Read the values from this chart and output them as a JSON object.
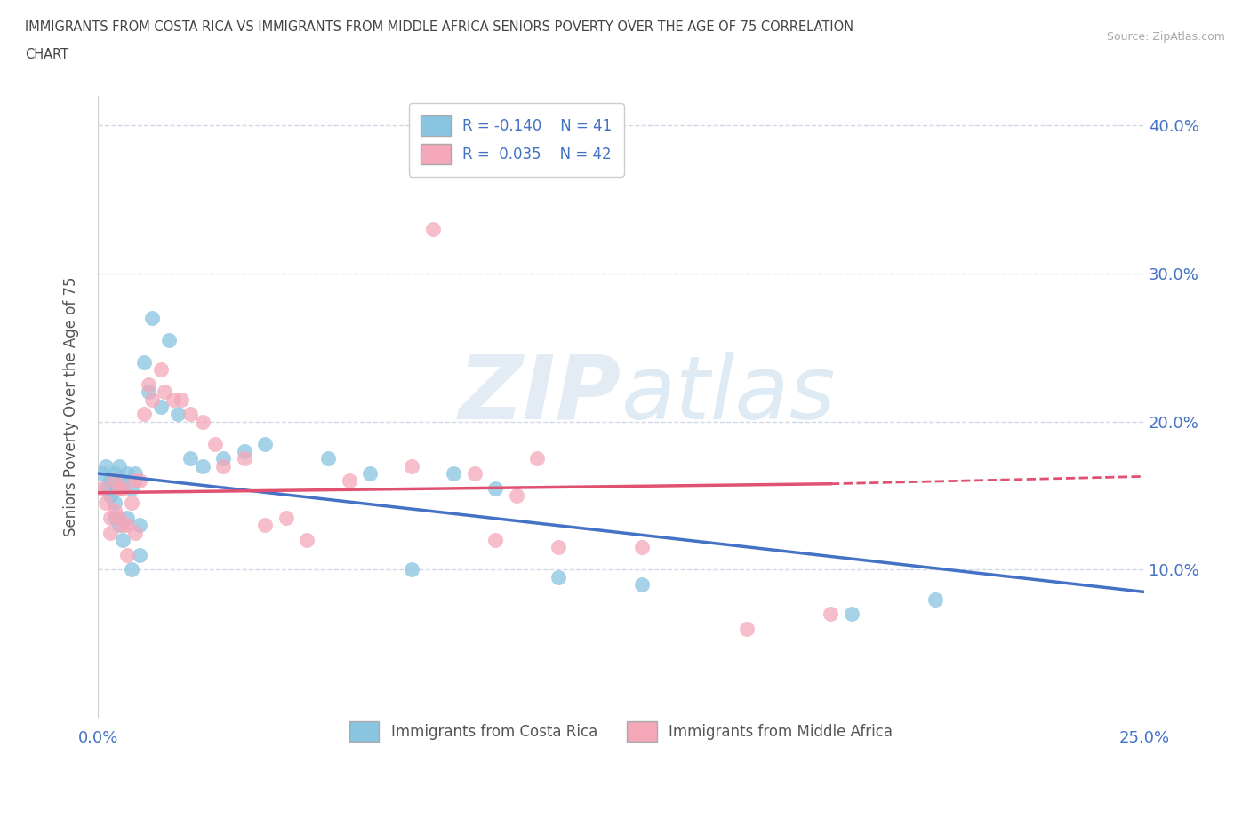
{
  "title_line1": "IMMIGRANTS FROM COSTA RICA VS IMMIGRANTS FROM MIDDLE AFRICA SENIORS POVERTY OVER THE AGE OF 75 CORRELATION",
  "title_line2": "CHART",
  "source": "Source: ZipAtlas.com",
  "ylabel": "Seniors Poverty Over the Age of 75",
  "xlim": [
    0.0,
    0.25
  ],
  "ylim": [
    0.0,
    0.42
  ],
  "ytick_positions": [
    0.1,
    0.2,
    0.3,
    0.4
  ],
  "xtick_positions": [
    0.0,
    0.25
  ],
  "xtick_labels": [
    "0.0%",
    "25.0%"
  ],
  "ytick_labels": [
    "10.0%",
    "20.0%",
    "30.0%",
    "40.0%"
  ],
  "watermark_zip": "ZIP",
  "watermark_atlas": "atlas",
  "legend_r_costa_rica": "R = -0.140",
  "legend_n_costa_rica": "N = 41",
  "legend_r_middle_africa": "R =  0.035",
  "legend_n_middle_africa": "N = 42",
  "color_costa_rica": "#89c4e1",
  "color_middle_africa": "#f4a7b9",
  "color_trendline_costa_rica": "#4472c4",
  "color_trendline_middle_africa": "#e05070",
  "costa_rica_x": [
    0.001,
    0.002,
    0.002,
    0.003,
    0.003,
    0.003,
    0.004,
    0.004,
    0.004,
    0.005,
    0.005,
    0.005,
    0.006,
    0.006,
    0.007,
    0.007,
    0.008,
    0.008,
    0.009,
    0.01,
    0.01,
    0.011,
    0.012,
    0.013,
    0.015,
    0.017,
    0.019,
    0.022,
    0.025,
    0.03,
    0.035,
    0.04,
    0.055,
    0.065,
    0.075,
    0.085,
    0.095,
    0.11,
    0.13,
    0.18,
    0.2
  ],
  "costa_rica_y": [
    0.165,
    0.155,
    0.17,
    0.16,
    0.155,
    0.15,
    0.165,
    0.145,
    0.135,
    0.17,
    0.155,
    0.13,
    0.16,
    0.12,
    0.165,
    0.135,
    0.155,
    0.1,
    0.165,
    0.13,
    0.11,
    0.24,
    0.22,
    0.27,
    0.21,
    0.255,
    0.205,
    0.175,
    0.17,
    0.175,
    0.18,
    0.185,
    0.175,
    0.165,
    0.1,
    0.165,
    0.155,
    0.095,
    0.09,
    0.07,
    0.08
  ],
  "middle_africa_x": [
    0.001,
    0.002,
    0.003,
    0.003,
    0.004,
    0.004,
    0.005,
    0.005,
    0.006,
    0.006,
    0.007,
    0.007,
    0.008,
    0.009,
    0.009,
    0.01,
    0.011,
    0.012,
    0.013,
    0.015,
    0.016,
    0.018,
    0.02,
    0.022,
    0.025,
    0.028,
    0.03,
    0.035,
    0.04,
    0.045,
    0.05,
    0.06,
    0.075,
    0.08,
    0.09,
    0.095,
    0.1,
    0.105,
    0.11,
    0.13,
    0.155,
    0.175
  ],
  "middle_africa_y": [
    0.155,
    0.145,
    0.135,
    0.125,
    0.16,
    0.14,
    0.155,
    0.135,
    0.155,
    0.13,
    0.13,
    0.11,
    0.145,
    0.16,
    0.125,
    0.16,
    0.205,
    0.225,
    0.215,
    0.235,
    0.22,
    0.215,
    0.215,
    0.205,
    0.2,
    0.185,
    0.17,
    0.175,
    0.13,
    0.135,
    0.12,
    0.16,
    0.17,
    0.33,
    0.165,
    0.12,
    0.15,
    0.175,
    0.115,
    0.115,
    0.06,
    0.07
  ],
  "background_color": "#ffffff",
  "grid_color": "#d0d8e8",
  "legend_label_costa_rica": "Immigrants from Costa Rica",
  "legend_label_middle_africa": "Immigrants from Middle Africa"
}
